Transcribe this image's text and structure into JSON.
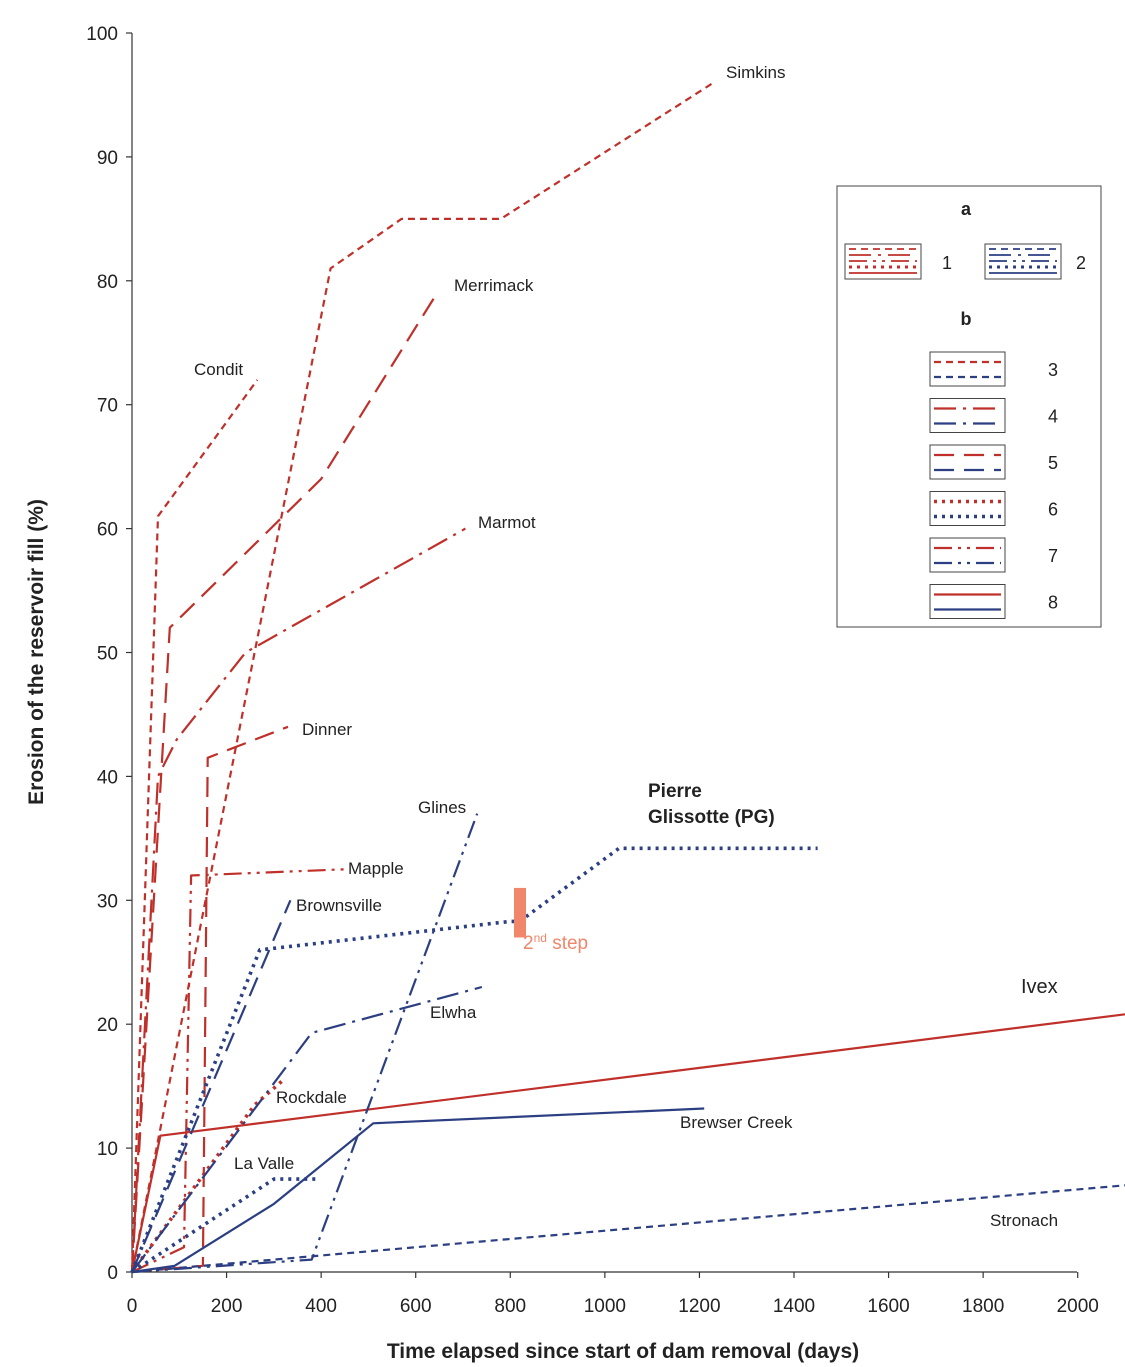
{
  "chart_data": {
    "type": "line",
    "xlabel": "Time elapsed since start of dam removal (days)",
    "ylabel": "Erosion of the reservoir fill  (%)",
    "xlim": [
      0,
      2100
    ],
    "ylim": [
      0,
      100
    ],
    "x_ticks": [
      "0",
      "200",
      "400",
      "600",
      "800",
      "1000",
      "1200",
      "1400",
      "1600",
      "1800",
      "2000"
    ],
    "y_ticks": [
      "0",
      "10",
      "20",
      "30",
      "40",
      "50",
      "60",
      "70",
      "80",
      "90",
      "100"
    ],
    "colors": {
      "type1": "#c0302a",
      "type2": "#2c3f82",
      "annotation": "#f0876a"
    },
    "series": [
      {
        "name": "Simkins",
        "group": 1,
        "style": 3,
        "x": [
          0,
          420,
          570,
          780,
          1230
        ],
        "y": [
          0,
          81,
          85,
          85,
          96
        ]
      },
      {
        "name": "Merrimack",
        "group": 1,
        "style": 5,
        "x": [
          0,
          80,
          400,
          645
        ],
        "y": [
          0,
          52,
          64,
          79
        ]
      },
      {
        "name": "Condit",
        "group": 1,
        "style": 3,
        "x": [
          0,
          55,
          265
        ],
        "y": [
          0,
          61,
          72
        ]
      },
      {
        "name": "Marmot",
        "group": 1,
        "style": 4,
        "x": [
          0,
          55,
          95,
          240,
          705
        ],
        "y": [
          0,
          40,
          43,
          50,
          60
        ]
      },
      {
        "name": "Dinner",
        "group": 1,
        "style": 5,
        "x": [
          0,
          150,
          160,
          330
        ],
        "y": [
          0,
          0.5,
          41.5,
          44
        ]
      },
      {
        "name": "Mapple",
        "group": 1,
        "style": 7,
        "x": [
          0,
          110,
          125,
          450
        ],
        "y": [
          0,
          2,
          32,
          32.5
        ]
      },
      {
        "name": "Rockdale",
        "group": 1,
        "style": 6,
        "x": [
          0,
          260,
          320
        ],
        "y": [
          0,
          13.5,
          15.5
        ]
      },
      {
        "name": "Ivex",
        "group": 1,
        "style": 8,
        "x": [
          0,
          60,
          2100
        ],
        "y": [
          0,
          11,
          20.8
        ]
      },
      {
        "name": "Pierre Glissotte (PG)",
        "group": 2,
        "style": 6,
        "x": [
          0,
          270,
          800,
          820,
          1030,
          1450
        ],
        "y": [
          0,
          26,
          28.3,
          28.3,
          34.2,
          34.2
        ]
      },
      {
        "name": "Brownsville",
        "group": 2,
        "style": 5,
        "x": [
          0,
          335
        ],
        "y": [
          0,
          30
        ]
      },
      {
        "name": "Glines",
        "group": 2,
        "style": 7,
        "x": [
          0,
          380,
          730
        ],
        "y": [
          0,
          1,
          37
        ]
      },
      {
        "name": "Elwha",
        "group": 2,
        "style": 4,
        "x": [
          0,
          380,
          740
        ],
        "y": [
          0,
          19.3,
          23
        ]
      },
      {
        "name": "La Valle",
        "group": 2,
        "style": 6,
        "x": [
          0,
          300,
          390
        ],
        "y": [
          0,
          7.5,
          7.5
        ]
      },
      {
        "name": "Brewser Creek",
        "group": 2,
        "style": 8,
        "x": [
          0,
          90,
          300,
          510,
          1210
        ],
        "y": [
          0,
          0.5,
          5.5,
          12,
          13.2
        ]
      },
      {
        "name": "Stronach",
        "group": 2,
        "style": 3,
        "x": [
          0,
          2100
        ],
        "y": [
          0,
          7
        ]
      }
    ],
    "annotation": {
      "text": "2nd step",
      "x": 810,
      "y_range": [
        27,
        31
      ]
    },
    "legend": {
      "placement": "right",
      "head_a": "a",
      "head_b": "b",
      "items_a": [
        {
          "label": "1",
          "color": "type1"
        },
        {
          "label": "2",
          "color": "type2"
        }
      ],
      "items_b": [
        {
          "label": "3",
          "style": 3
        },
        {
          "label": "4",
          "style": 4
        },
        {
          "label": "5",
          "style": 5
        },
        {
          "label": "6",
          "style": 6
        },
        {
          "label": "7",
          "style": 7
        },
        {
          "label": "8",
          "style": 8
        }
      ]
    },
    "grid": false
  }
}
